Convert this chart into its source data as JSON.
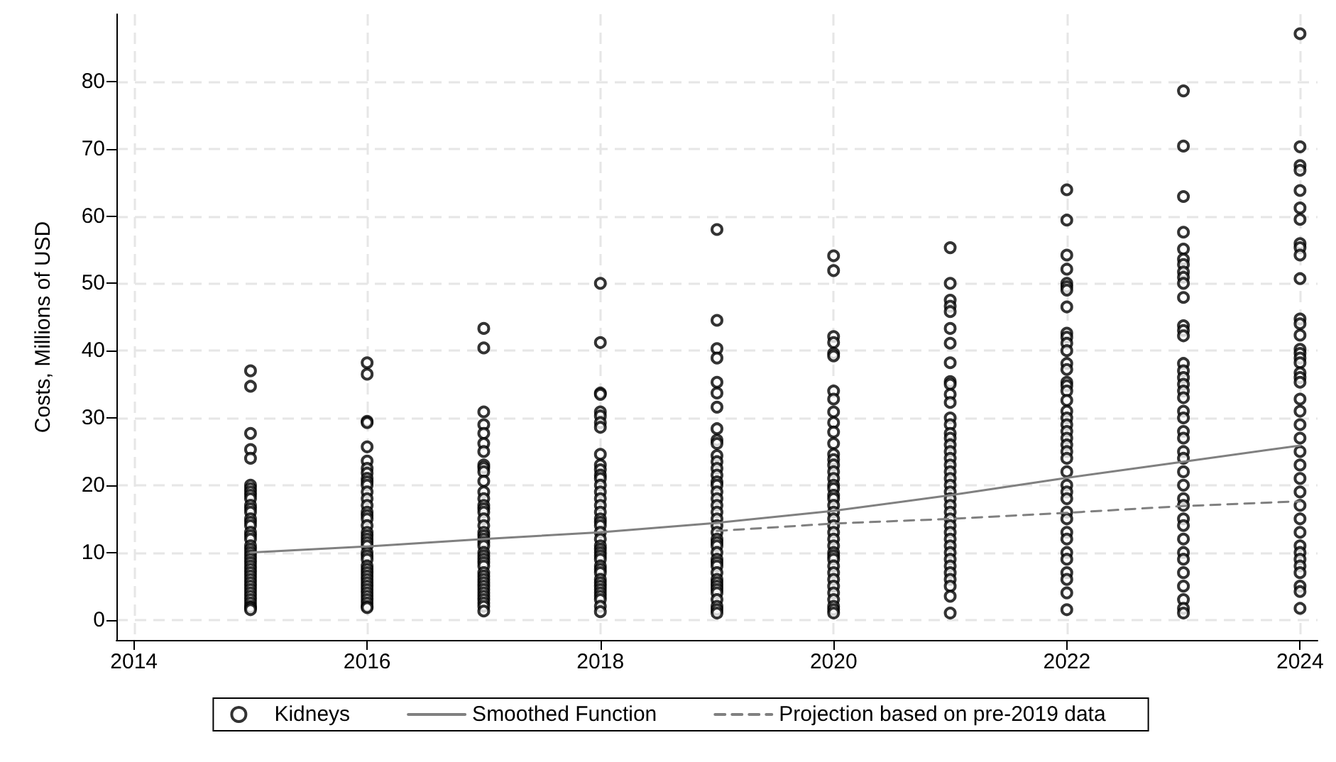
{
  "chart_data": {
    "type": "scatter",
    "ylabel": "Costs, Millions of USD",
    "xlim": [
      2013.85,
      2024.15
    ],
    "ylim": [
      -3,
      90
    ],
    "xticks": [
      2014,
      2016,
      2018,
      2020,
      2022,
      2024
    ],
    "yticks": [
      0,
      10,
      20,
      30,
      40,
      50,
      60,
      70,
      80
    ],
    "grid": true,
    "legend": "bottom",
    "series": [
      {
        "name": "Kidneys",
        "color": "#000000",
        "marker": "circle",
        "x": [
          2015,
          2015,
          2015,
          2015,
          2015,
          2015,
          2015,
          2015,
          2015,
          2015,
          2015,
          2015,
          2015,
          2015,
          2015,
          2015,
          2015,
          2015,
          2015,
          2015,
          2015,
          2015,
          2015,
          2015,
          2015,
          2015,
          2015,
          2015,
          2015,
          2015,
          2015,
          2015,
          2015,
          2015,
          2015,
          2015,
          2015,
          2015,
          2015,
          2015,
          2016,
          2016,
          2016,
          2016,
          2016,
          2016,
          2016,
          2016,
          2016,
          2016,
          2016,
          2016,
          2016,
          2016,
          2016,
          2016,
          2016,
          2016,
          2016,
          2016,
          2016,
          2016,
          2016,
          2016,
          2016,
          2016,
          2016,
          2016,
          2016,
          2016,
          2016,
          2016,
          2016,
          2016,
          2016,
          2016,
          2016,
          2016,
          2016,
          2016,
          2017,
          2017,
          2017,
          2017,
          2017,
          2017,
          2017,
          2017,
          2017,
          2017,
          2017,
          2017,
          2017,
          2017,
          2017,
          2017,
          2017,
          2017,
          2017,
          2017,
          2017,
          2017,
          2017,
          2017,
          2017,
          2017,
          2017,
          2017,
          2017,
          2017,
          2017,
          2017,
          2017,
          2017,
          2017,
          2017,
          2017,
          2017,
          2017,
          2017,
          2018,
          2018,
          2018,
          2018,
          2018,
          2018,
          2018,
          2018,
          2018,
          2018,
          2018,
          2018,
          2018,
          2018,
          2018,
          2018,
          2018,
          2018,
          2018,
          2018,
          2018,
          2018,
          2018,
          2018,
          2018,
          2018,
          2018,
          2018,
          2018,
          2018,
          2018,
          2018,
          2018,
          2018,
          2018,
          2018,
          2018,
          2018,
          2018,
          2018,
          2019,
          2019,
          2019,
          2019,
          2019,
          2019,
          2019,
          2019,
          2019,
          2019,
          2019,
          2019,
          2019,
          2019,
          2019,
          2019,
          2019,
          2019,
          2019,
          2019,
          2019,
          2019,
          2019,
          2019,
          2019,
          2019,
          2019,
          2019,
          2019,
          2019,
          2019,
          2019,
          2019,
          2019,
          2019,
          2019,
          2019,
          2019,
          2019,
          2019,
          2020,
          2020,
          2020,
          2020,
          2020,
          2020,
          2020,
          2020,
          2020,
          2020,
          2020,
          2020,
          2020,
          2020,
          2020,
          2020,
          2020,
          2020,
          2020,
          2020,
          2020,
          2020,
          2020,
          2020,
          2020,
          2020,
          2020,
          2020,
          2020,
          2020,
          2020,
          2020,
          2020,
          2020,
          2020,
          2020,
          2020,
          2020,
          2020,
          2020,
          2021,
          2021,
          2021,
          2021,
          2021,
          2021,
          2021,
          2021,
          2021,
          2021,
          2021,
          2021,
          2021,
          2021,
          2021,
          2021,
          2021,
          2021,
          2021,
          2021,
          2021,
          2021,
          2021,
          2021,
          2021,
          2021,
          2021,
          2021,
          2021,
          2021,
          2021,
          2021,
          2021,
          2021,
          2021,
          2021,
          2021,
          2021,
          2021,
          2021,
          2022,
          2022,
          2022,
          2022,
          2022,
          2022,
          2022,
          2022,
          2022,
          2022,
          2022,
          2022,
          2022,
          2022,
          2022,
          2022,
          2022,
          2022,
          2022,
          2022,
          2022,
          2022,
          2022,
          2022,
          2022,
          2022,
          2022,
          2022,
          2022,
          2022,
          2022,
          2022,
          2022,
          2022,
          2022,
          2022,
          2022,
          2022,
          2022,
          2022,
          2023,
          2023,
          2023,
          2023,
          2023,
          2023,
          2023,
          2023,
          2023,
          2023,
          2023,
          2023,
          2023,
          2023,
          2023,
          2023,
          2023,
          2023,
          2023,
          2023,
          2023,
          2023,
          2023,
          2023,
          2023,
          2023,
          2023,
          2023,
          2023,
          2023,
          2023,
          2023,
          2023,
          2023,
          2023,
          2023,
          2023,
          2023,
          2023,
          2023,
          2024,
          2024,
          2024,
          2024,
          2024,
          2024,
          2024,
          2024,
          2024,
          2024,
          2024,
          2024,
          2024,
          2024,
          2024,
          2024,
          2024,
          2024,
          2024,
          2024,
          2024,
          2024,
          2024,
          2024,
          2024,
          2024,
          2024,
          2024,
          2024,
          2024,
          2024,
          2024,
          2024,
          2024,
          2024,
          2024,
          2024,
          2024,
          2024,
          2024
        ],
        "values": [
          37,
          34.7,
          27.7,
          25.3,
          24,
          20,
          19.5,
          19,
          18.5,
          18,
          17,
          16.5,
          16,
          15,
          14.5,
          14,
          13,
          12.5,
          12,
          11,
          10.5,
          10,
          9.5,
          9,
          8.5,
          8,
          7.5,
          7,
          6.5,
          6,
          5.5,
          5,
          4.5,
          4,
          3.5,
          3,
          2.5,
          2,
          1.8,
          1.5,
          38.2,
          36.5,
          29.5,
          29.3,
          25.7,
          23.6,
          22.5,
          21.8,
          21,
          20.5,
          20,
          19,
          18,
          17,
          16,
          15.5,
          15,
          14,
          13,
          12.5,
          12,
          11.5,
          11,
          10,
          9.5,
          9,
          8,
          7.5,
          7,
          6.5,
          6,
          5.5,
          5,
          4.5,
          4,
          3.5,
          3,
          2.5,
          2,
          1.8,
          43.3,
          40.4,
          30.9,
          29,
          27.7,
          26.2,
          25,
          23,
          22.6,
          22,
          20.6,
          19,
          18,
          17,
          16.5,
          16,
          15,
          14,
          13,
          12.5,
          12,
          11.5,
          11,
          10,
          9.5,
          9,
          8.5,
          8,
          7,
          6.5,
          6,
          5.5,
          5,
          4.5,
          4,
          3.5,
          3,
          2.5,
          2,
          1.3,
          50,
          41.2,
          33.7,
          33.5,
          30.9,
          30.3,
          29.3,
          28.6,
          24.6,
          23,
          22.3,
          21.5,
          21,
          20,
          19,
          18,
          17,
          16,
          15,
          14.5,
          14,
          13,
          12,
          11,
          10.5,
          10,
          9.5,
          9,
          8,
          7.5,
          7,
          6,
          5.5,
          5,
          4.5,
          4,
          3.5,
          3,
          2,
          1.2,
          58,
          44.5,
          40.3,
          38.9,
          35.3,
          33.7,
          31.6,
          28.4,
          26.7,
          26.2,
          24.4,
          23.5,
          22.5,
          21.5,
          20.5,
          20,
          19,
          18,
          17,
          16,
          15,
          14,
          13,
          12,
          11.5,
          11,
          10,
          9,
          8.5,
          8,
          7,
          6,
          5.5,
          5,
          4.5,
          4,
          3,
          2,
          1.5,
          1,
          54.1,
          51.9,
          42.1,
          41.2,
          39.6,
          39.2,
          34,
          32.8,
          30.9,
          29.3,
          27.9,
          26.2,
          24.6,
          23.8,
          23,
          22,
          21,
          20,
          19.5,
          18.5,
          18,
          17,
          16,
          15,
          14,
          13,
          12,
          11,
          10,
          9.5,
          9,
          8,
          7,
          6,
          5,
          4,
          3,
          2,
          1.5,
          1,
          55.3,
          50,
          47.5,
          46.6,
          45.8,
          43.3,
          41.1,
          38.2,
          35.4,
          35,
          33.5,
          32.3,
          30,
          29,
          27.7,
          27,
          26,
          25,
          24,
          23,
          22,
          21,
          20,
          19,
          18,
          17,
          16,
          15,
          14,
          13,
          12,
          11,
          10,
          9,
          8,
          7,
          6,
          5,
          3.5,
          1,
          63.9,
          59.4,
          54.2,
          52.1,
          50,
          49.5,
          49,
          46.5,
          42.6,
          42,
          41.1,
          40,
          38.1,
          37.2,
          35.3,
          34.8,
          34,
          32.6,
          31,
          30,
          29,
          28,
          27,
          26,
          25,
          24,
          22,
          20,
          19,
          18,
          16,
          15,
          13,
          12,
          10,
          9,
          7,
          6,
          4,
          1.5,
          78.6,
          70.4,
          62.9,
          57.6,
          55.1,
          53.6,
          52.8,
          51.7,
          50.9,
          50,
          47.9,
          43.7,
          43,
          42.2,
          38.1,
          37,
          36,
          35,
          34,
          33,
          31,
          30,
          28,
          27,
          25,
          24,
          22,
          20,
          18,
          17,
          15,
          14,
          12,
          10,
          9,
          7,
          5,
          3,
          1.7,
          1,
          87.1,
          70.3,
          67.5,
          66.8,
          63.8,
          61.2,
          59.5,
          55.9,
          55.3,
          54.2,
          50.7,
          44.7,
          44,
          42.3,
          40.2,
          39.6,
          38.9,
          38.2,
          36.7,
          36,
          35.3,
          32.8,
          31,
          29,
          27,
          25,
          23,
          21,
          19,
          17,
          15,
          13,
          11,
          10,
          9,
          8,
          7,
          5,
          4.2,
          1.7
        ]
      },
      {
        "name": "Smoothed Function",
        "type": "line",
        "color": "#808080",
        "marker": "none",
        "line_style": "solid",
        "x": [
          2015,
          2016,
          2017,
          2018,
          2019,
          2020,
          2021,
          2022,
          2023,
          2024
        ],
        "values": [
          10,
          10.9,
          12,
          13,
          14.4,
          16.2,
          18.5,
          21.1,
          23.5,
          25.9
        ]
      },
      {
        "name": "Projection based on pre-2019 data",
        "type": "line",
        "color": "#808080",
        "marker": "none",
        "line_style": "dashed",
        "x": [
          2019,
          2020,
          2021,
          2022,
          2023,
          2024
        ],
        "values": [
          13.2,
          14.3,
          15,
          15.9,
          16.9,
          17.6
        ]
      }
    ]
  }
}
